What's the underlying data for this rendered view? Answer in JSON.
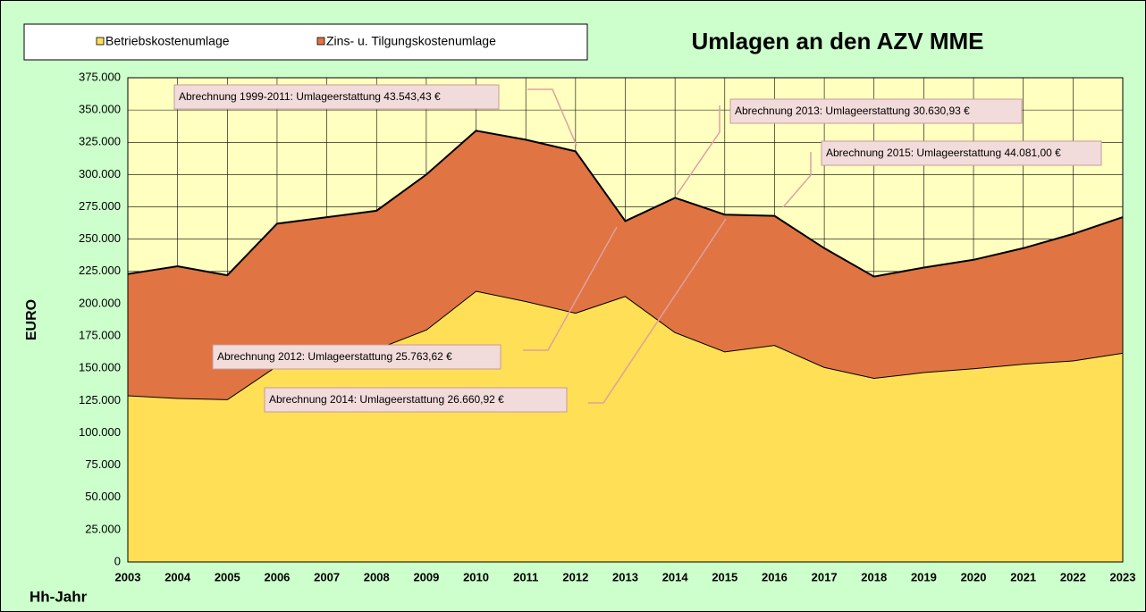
{
  "chart_data": {
    "type": "stacked_area",
    "title": "Umlagen an den AZV MME",
    "y_label": "EURO",
    "x_label": "Hh-Jahr",
    "categories": [
      "2003",
      "2004",
      "2005",
      "2006",
      "2007",
      "2008",
      "2009",
      "2010",
      "2011",
      "2012",
      "2013",
      "2014",
      "2015",
      "2016",
      "2017",
      "2018",
      "2019",
      "2020",
      "2021",
      "2022",
      "2023"
    ],
    "series": [
      {
        "name": "Betriebskostenumlage",
        "color": "#ffdf55",
        "values": [
          129000,
          127000,
          126000,
          152000,
          157000,
          165000,
          180000,
          210000,
          202000,
          193000,
          206000,
          178000,
          163000,
          168000,
          151000,
          142500,
          147000,
          150000,
          153500,
          156000,
          162000
        ]
      },
      {
        "name": "Zins- u. Tilgungskostenumlage",
        "color": "#e07442",
        "values": [
          94000,
          102000,
          96000,
          110000,
          110000,
          107000,
          120000,
          124000,
          125000,
          125000,
          58000,
          104000,
          106000,
          100000,
          92000,
          78500,
          81000,
          84000,
          89500,
          98000,
          105000
        ]
      }
    ],
    "ylim": [
      0,
      375000
    ],
    "yticks": [
      0,
      {
        "value": 25000,
        "label": "25.000"
      },
      {
        "value": 50000,
        "label": "50.000"
      },
      {
        "value": 75000,
        "label": "75.000"
      },
      {
        "value": 100000,
        "label": "100.000"
      },
      {
        "value": 125000,
        "label": "125.000"
      },
      {
        "value": 150000,
        "label": "150.000"
      },
      {
        "value": 175000,
        "label": "175.000"
      },
      {
        "value": 200000,
        "label": "200.000"
      },
      {
        "value": 225000,
        "label": "225.000"
      },
      {
        "value": 250000,
        "label": "250.000"
      },
      {
        "value": 275000,
        "label": "275.000"
      },
      {
        "value": 300000,
        "label": "300.000"
      },
      {
        "value": 325000,
        "label": "325.000"
      },
      {
        "value": 350000,
        "label": "350.000"
      },
      {
        "value": 375000,
        "label": "375.000"
      }
    ],
    "grid": true,
    "annotations": [
      "Abrechnung 1999-2011: Umlageerstattung 43.543,43 €",
      "Abrechnung 2013: Umlageerstattung 30.630,93 €",
      "Abrechnung 2015: Umlageerstattung 44.081,00 €",
      "Abrechnung 2012: Umlageerstattung 25.763,62 €",
      "Abrechnung 2014: Umlageerstattung 26.660,92 €"
    ]
  }
}
